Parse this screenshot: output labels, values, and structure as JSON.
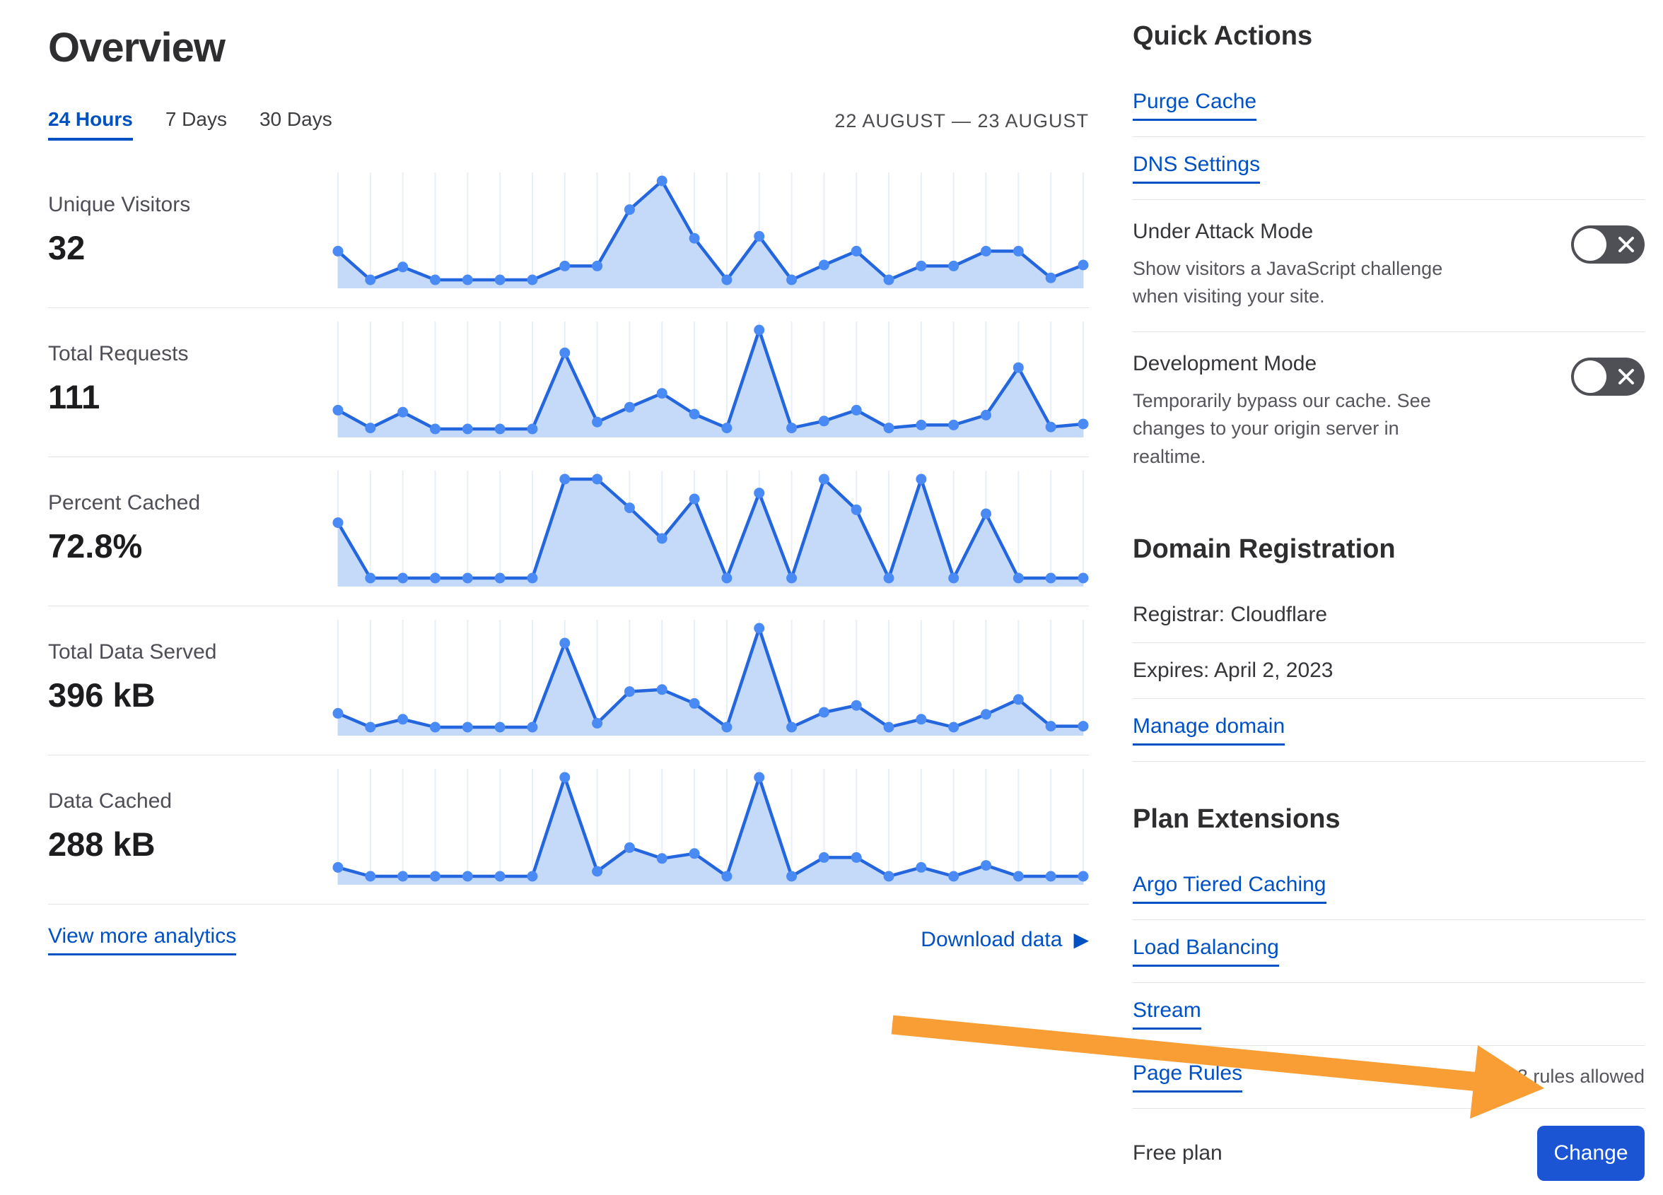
{
  "page": {
    "title": "Overview"
  },
  "tabs": {
    "hours24": "24 Hours",
    "days7": "7 Days",
    "days30": "30 Days"
  },
  "date_range": "22 AUGUST — 23 AUGUST",
  "chart_data": [
    {
      "type": "area",
      "title": "Unique Visitors",
      "value": "32",
      "x_range": "24 Hours (22 August — 23 August)",
      "points": 24,
      "ylim": [
        0,
        1
      ],
      "points_rel": [
        0.29,
        0,
        0.13,
        0,
        0,
        0,
        0,
        0.14,
        0.14,
        0.71,
        1,
        0.42,
        0,
        0.44,
        0,
        0.15,
        0.29,
        0,
        0.14,
        0.14,
        0.29,
        0.29,
        0.02,
        0.15
      ]
    },
    {
      "type": "area",
      "title": "Total Requests",
      "value": "111",
      "x_range": "24 Hours (22 August — 23 August)",
      "points": 24,
      "ylim": [
        0,
        1
      ],
      "points_rel": [
        0.19,
        0.01,
        0.17,
        0,
        0,
        0,
        0,
        0.77,
        0.07,
        0.22,
        0.36,
        0.15,
        0.01,
        1,
        0.01,
        0.08,
        0.19,
        0.01,
        0.04,
        0.04,
        0.14,
        0.62,
        0.02,
        0.05
      ]
    },
    {
      "type": "area",
      "title": "Percent Cached",
      "value": "72.8%",
      "x_range": "24 Hours (22 August — 23 August)",
      "points": 24,
      "ylim": [
        0,
        1
      ],
      "points_rel": [
        0.56,
        0,
        0,
        0,
        0,
        0,
        0,
        1,
        1,
        0.71,
        0.4,
        0.8,
        0,
        0.86,
        0,
        1,
        0.69,
        0,
        1,
        0,
        0.65,
        0,
        0,
        0
      ]
    },
    {
      "type": "area",
      "title": "Total Data Served",
      "value": "396 kB",
      "x_range": "24 Hours (22 August — 23 August)",
      "points": 24,
      "ylim": [
        0,
        1
      ],
      "points_rel": [
        0.14,
        0,
        0.08,
        0,
        0,
        0,
        0,
        0.85,
        0.04,
        0.36,
        0.38,
        0.24,
        0,
        1,
        0,
        0.15,
        0.22,
        0,
        0.08,
        0,
        0.13,
        0.28,
        0.01,
        0.01
      ]
    },
    {
      "type": "area",
      "title": "Data Cached",
      "value": "288 kB",
      "x_range": "24 Hours (22 August — 23 August)",
      "points": 24,
      "ylim": [
        0,
        1
      ],
      "points_rel": [
        0.09,
        0,
        0,
        0,
        0,
        0,
        0,
        1,
        0.05,
        0.29,
        0.18,
        0.23,
        0,
        1,
        0,
        0.19,
        0.19,
        0,
        0.09,
        0,
        0.11,
        0,
        0,
        0
      ]
    }
  ],
  "footer": {
    "view_more": "View more analytics",
    "download": "Download data"
  },
  "quick_actions": {
    "heading": "Quick Actions",
    "purge_cache": "Purge Cache",
    "dns_settings": "DNS Settings",
    "under_attack": {
      "title": "Under Attack Mode",
      "description": "Show visitors a JavaScript challenge when visiting your site.",
      "state": "off"
    },
    "development_mode": {
      "title": "Development Mode",
      "description": "Temporarily bypass our cache. See changes to your origin server in realtime.",
      "state": "off"
    }
  },
  "domain_registration": {
    "heading": "Domain Registration",
    "registrar": "Registrar: Cloudflare",
    "expires": "Expires: April 2, 2023",
    "manage": "Manage domain"
  },
  "plan_extensions": {
    "heading": "Plan Extensions",
    "argo": "Argo Tiered Caching",
    "load_balancing": "Load Balancing",
    "stream": "Stream",
    "page_rules": "Page Rules",
    "page_rules_note": "3 rules allowed"
  },
  "plan": {
    "label": "Free plan",
    "change_button": "Change"
  },
  "colors": {
    "link_blue": "#0051c3",
    "chart_line": "#2466dd",
    "chart_dot": "#4a8af4",
    "chart_fill": "#c5daf8",
    "chart_gridline": "#e9eff9",
    "button_blue": "#1b55d3",
    "arrow_orange": "#f89e35",
    "toggle_off_bg": "#4f4f56"
  }
}
